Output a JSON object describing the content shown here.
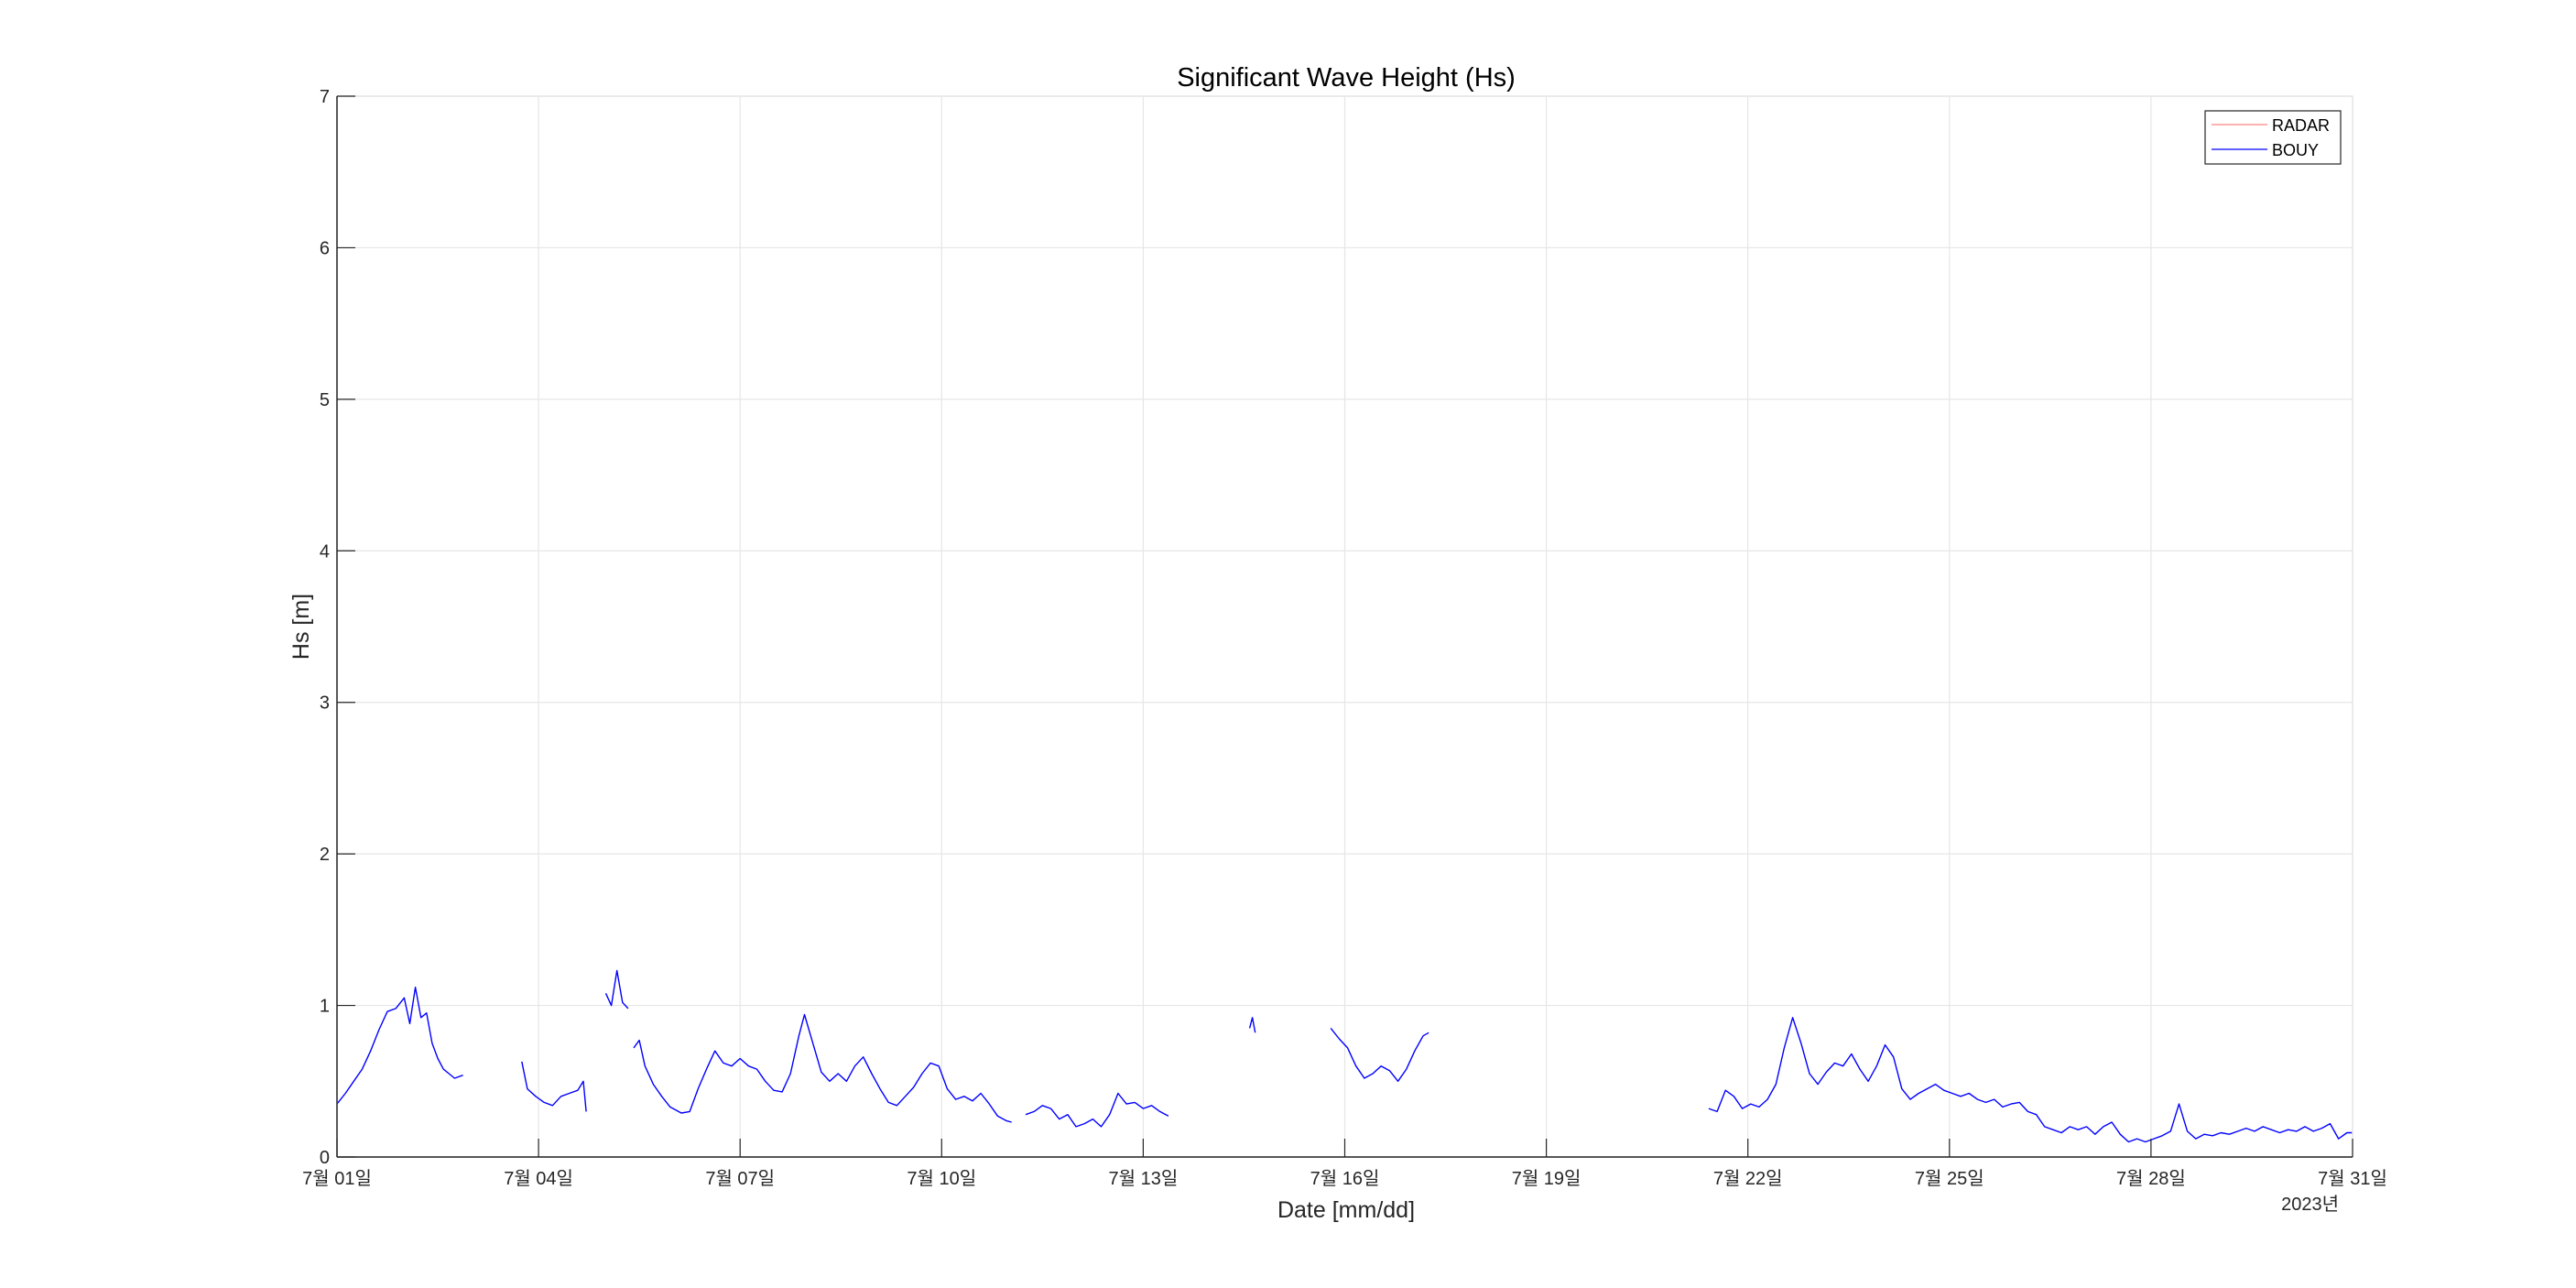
{
  "chart_data": {
    "type": "line",
    "title": "Significant Wave Height (Hs)",
    "xlabel": "Date [mm/dd]",
    "ylabel": "Hs [m]",
    "year_label": "2023년",
    "xlim": [
      "2023-07-01",
      "2023-07-31"
    ],
    "ylim": [
      0,
      7
    ],
    "yticks": [
      0,
      1,
      2,
      3,
      4,
      5,
      6,
      7
    ],
    "ytick_labels": [
      "0",
      "1",
      "2",
      "3",
      "4",
      "5",
      "6",
      "7"
    ],
    "xticks": [
      "2023-07-01",
      "2023-07-04",
      "2023-07-07",
      "2023-07-10",
      "2023-07-13",
      "2023-07-16",
      "2023-07-19",
      "2023-07-22",
      "2023-07-25",
      "2023-07-28",
      "2023-07-31"
    ],
    "xtick_labels": [
      "7월 01일",
      "7월 04일",
      "7월 07일",
      "7월 10일",
      "7월 13일",
      "7월 16일",
      "7월 19일",
      "7월 22일",
      "7월 25일",
      "7월 28일",
      "7월 31일"
    ],
    "grid": true,
    "legend_position": "top-right",
    "series": [
      {
        "name": "RADAR",
        "color": "#ff8080",
        "segments": []
      },
      {
        "name": "BOUY",
        "color": "#0000ff",
        "segments": [
          [
            [
              "2023-07-01T00:00",
              0.35
            ],
            [
              "2023-07-01T03:00",
              0.42
            ],
            [
              "2023-07-01T06:00",
              0.5
            ],
            [
              "2023-07-01T09:00",
              0.58
            ],
            [
              "2023-07-01T12:00",
              0.7
            ],
            [
              "2023-07-01T15:00",
              0.84
            ],
            [
              "2023-07-01T18:00",
              0.96
            ],
            [
              "2023-07-01T21:00",
              0.98
            ],
            [
              "2023-07-02T00:00",
              1.05
            ],
            [
              "2023-07-02T02:00",
              0.88
            ],
            [
              "2023-07-02T04:00",
              1.12
            ],
            [
              "2023-07-02T06:00",
              0.92
            ],
            [
              "2023-07-02T08:00",
              0.95
            ],
            [
              "2023-07-02T10:00",
              0.75
            ],
            [
              "2023-07-02T12:00",
              0.65
            ],
            [
              "2023-07-02T14:00",
              0.58
            ],
            [
              "2023-07-02T16:00",
              0.55
            ],
            [
              "2023-07-02T18:00",
              0.52
            ],
            [
              "2023-07-02T21:00",
              0.54
            ]
          ],
          [
            [
              "2023-07-03T18:00",
              0.63
            ],
            [
              "2023-07-03T20:00",
              0.45
            ],
            [
              "2023-07-03T23:00",
              0.4
            ],
            [
              "2023-07-04T02:00",
              0.36
            ],
            [
              "2023-07-04T05:00",
              0.34
            ],
            [
              "2023-07-04T08:00",
              0.4
            ],
            [
              "2023-07-04T11:00",
              0.42
            ],
            [
              "2023-07-04T14:00",
              0.44
            ],
            [
              "2023-07-04T16:00",
              0.5
            ],
            [
              "2023-07-04T17:00",
              0.3
            ]
          ],
          [
            [
              "2023-07-05T00:00",
              1.08
            ],
            [
              "2023-07-05T02:00",
              1.0
            ],
            [
              "2023-07-05T04:00",
              1.23
            ],
            [
              "2023-07-05T06:00",
              1.02
            ],
            [
              "2023-07-05T08:00",
              0.98
            ]
          ],
          [
            [
              "2023-07-05T10:00",
              0.72
            ],
            [
              "2023-07-05T12:00",
              0.77
            ],
            [
              "2023-07-05T14:00",
              0.6
            ],
            [
              "2023-07-05T17:00",
              0.48
            ],
            [
              "2023-07-05T20:00",
              0.4
            ],
            [
              "2023-07-05T23:00",
              0.33
            ],
            [
              "2023-07-06T03:00",
              0.29
            ],
            [
              "2023-07-06T06:00",
              0.3
            ],
            [
              "2023-07-06T09:00",
              0.45
            ],
            [
              "2023-07-06T12:00",
              0.58
            ],
            [
              "2023-07-06T15:00",
              0.7
            ],
            [
              "2023-07-06T18:00",
              0.62
            ],
            [
              "2023-07-06T21:00",
              0.6
            ],
            [
              "2023-07-07T00:00",
              0.65
            ],
            [
              "2023-07-07T03:00",
              0.6
            ],
            [
              "2023-07-07T06:00",
              0.58
            ],
            [
              "2023-07-07T09:00",
              0.5
            ],
            [
              "2023-07-07T12:00",
              0.44
            ],
            [
              "2023-07-07T15:00",
              0.43
            ],
            [
              "2023-07-07T18:00",
              0.55
            ],
            [
              "2023-07-07T21:00",
              0.8
            ],
            [
              "2023-07-07T23:00",
              0.94
            ],
            [
              "2023-07-08T02:00",
              0.75
            ],
            [
              "2023-07-08T05:00",
              0.56
            ],
            [
              "2023-07-08T08:00",
              0.5
            ],
            [
              "2023-07-08T11:00",
              0.55
            ],
            [
              "2023-07-08T14:00",
              0.5
            ],
            [
              "2023-07-08T17:00",
              0.6
            ],
            [
              "2023-07-08T20:00",
              0.66
            ],
            [
              "2023-07-08T23:00",
              0.55
            ],
            [
              "2023-07-09T02:00",
              0.45
            ],
            [
              "2023-07-09T05:00",
              0.36
            ],
            [
              "2023-07-09T08:00",
              0.34
            ],
            [
              "2023-07-09T11:00",
              0.4
            ],
            [
              "2023-07-09T14:00",
              0.46
            ],
            [
              "2023-07-09T17:00",
              0.55
            ],
            [
              "2023-07-09T20:00",
              0.62
            ],
            [
              "2023-07-09T23:00",
              0.6
            ],
            [
              "2023-07-10T02:00",
              0.45
            ],
            [
              "2023-07-10T05:00",
              0.38
            ],
            [
              "2023-07-10T08:00",
              0.4
            ],
            [
              "2023-07-10T11:00",
              0.37
            ],
            [
              "2023-07-10T14:00",
              0.42
            ],
            [
              "2023-07-10T17:00",
              0.35
            ],
            [
              "2023-07-10T20:00",
              0.27
            ],
            [
              "2023-07-10T23:00",
              0.24
            ],
            [
              "2023-07-11T01:00",
              0.23
            ]
          ],
          [
            [
              "2023-07-11T06:00",
              0.28
            ],
            [
              "2023-07-11T09:00",
              0.3
            ],
            [
              "2023-07-11T12:00",
              0.34
            ],
            [
              "2023-07-11T15:00",
              0.32
            ],
            [
              "2023-07-11T18:00",
              0.25
            ],
            [
              "2023-07-11T21:00",
              0.28
            ],
            [
              "2023-07-12T00:00",
              0.2
            ],
            [
              "2023-07-12T03:00",
              0.22
            ],
            [
              "2023-07-12T06:00",
              0.25
            ],
            [
              "2023-07-12T09:00",
              0.2
            ],
            [
              "2023-07-12T12:00",
              0.28
            ],
            [
              "2023-07-12T15:00",
              0.42
            ],
            [
              "2023-07-12T18:00",
              0.35
            ],
            [
              "2023-07-12T21:00",
              0.36
            ],
            [
              "2023-07-13T00:00",
              0.32
            ],
            [
              "2023-07-13T03:00",
              0.34
            ],
            [
              "2023-07-13T06:00",
              0.3
            ],
            [
              "2023-07-13T09:00",
              0.27
            ]
          ],
          [
            [
              "2023-07-14T14:00",
              0.85
            ],
            [
              "2023-07-14T15:00",
              0.92
            ],
            [
              "2023-07-14T16:00",
              0.82
            ]
          ],
          [
            [
              "2023-07-15T19:00",
              0.85
            ],
            [
              "2023-07-15T22:00",
              0.78
            ],
            [
              "2023-07-16T01:00",
              0.72
            ],
            [
              "2023-07-16T04:00",
              0.6
            ],
            [
              "2023-07-16T07:00",
              0.52
            ],
            [
              "2023-07-16T10:00",
              0.55
            ],
            [
              "2023-07-16T13:00",
              0.6
            ],
            [
              "2023-07-16T16:00",
              0.57
            ],
            [
              "2023-07-16T19:00",
              0.5
            ],
            [
              "2023-07-16T22:00",
              0.58
            ],
            [
              "2023-07-17T01:00",
              0.7
            ],
            [
              "2023-07-17T04:00",
              0.8
            ],
            [
              "2023-07-17T06:00",
              0.82
            ]
          ],
          [
            [
              "2023-07-21T10:00",
              0.32
            ],
            [
              "2023-07-21T13:00",
              0.3
            ],
            [
              "2023-07-21T16:00",
              0.44
            ],
            [
              "2023-07-21T19:00",
              0.4
            ],
            [
              "2023-07-21T22:00",
              0.32
            ],
            [
              "2023-07-22T01:00",
              0.35
            ],
            [
              "2023-07-22T04:00",
              0.33
            ],
            [
              "2023-07-22T07:00",
              0.38
            ],
            [
              "2023-07-22T10:00",
              0.48
            ],
            [
              "2023-07-22T13:00",
              0.72
            ],
            [
              "2023-07-22T16:00",
              0.92
            ],
            [
              "2023-07-22T19:00",
              0.75
            ],
            [
              "2023-07-22T22:00",
              0.55
            ],
            [
              "2023-07-23T01:00",
              0.48
            ],
            [
              "2023-07-23T04:00",
              0.56
            ],
            [
              "2023-07-23T07:00",
              0.62
            ],
            [
              "2023-07-23T10:00",
              0.6
            ],
            [
              "2023-07-23T13:00",
              0.68
            ],
            [
              "2023-07-23T16:00",
              0.58
            ],
            [
              "2023-07-23T19:00",
              0.5
            ],
            [
              "2023-07-23T22:00",
              0.6
            ],
            [
              "2023-07-24T01:00",
              0.74
            ],
            [
              "2023-07-24T04:00",
              0.66
            ],
            [
              "2023-07-24T07:00",
              0.45
            ],
            [
              "2023-07-24T10:00",
              0.38
            ],
            [
              "2023-07-24T13:00",
              0.42
            ],
            [
              "2023-07-24T16:00",
              0.45
            ],
            [
              "2023-07-24T19:00",
              0.48
            ],
            [
              "2023-07-24T22:00",
              0.44
            ],
            [
              "2023-07-25T01:00",
              0.42
            ],
            [
              "2023-07-25T04:00",
              0.4
            ],
            [
              "2023-07-25T07:00",
              0.42
            ],
            [
              "2023-07-25T10:00",
              0.38
            ],
            [
              "2023-07-25T13:00",
              0.36
            ],
            [
              "2023-07-25T16:00",
              0.38
            ],
            [
              "2023-07-25T19:00",
              0.33
            ],
            [
              "2023-07-25T22:00",
              0.35
            ],
            [
              "2023-07-26T01:00",
              0.36
            ],
            [
              "2023-07-26T04:00",
              0.3
            ],
            [
              "2023-07-26T07:00",
              0.28
            ],
            [
              "2023-07-26T10:00",
              0.2
            ],
            [
              "2023-07-26T13:00",
              0.18
            ],
            [
              "2023-07-26T16:00",
              0.16
            ],
            [
              "2023-07-26T19:00",
              0.2
            ],
            [
              "2023-07-26T22:00",
              0.18
            ],
            [
              "2023-07-27T01:00",
              0.2
            ],
            [
              "2023-07-27T04:00",
              0.15
            ],
            [
              "2023-07-27T07:00",
              0.2
            ],
            [
              "2023-07-27T10:00",
              0.23
            ],
            [
              "2023-07-27T13:00",
              0.15
            ],
            [
              "2023-07-27T16:00",
              0.1
            ],
            [
              "2023-07-27T19:00",
              0.12
            ],
            [
              "2023-07-27T22:00",
              0.1
            ],
            [
              "2023-07-28T01:00",
              0.12
            ],
            [
              "2023-07-28T04:00",
              0.14
            ],
            [
              "2023-07-28T07:00",
              0.17
            ],
            [
              "2023-07-28T10:00",
              0.35
            ],
            [
              "2023-07-28T13:00",
              0.17
            ],
            [
              "2023-07-28T16:00",
              0.12
            ],
            [
              "2023-07-28T19:00",
              0.15
            ],
            [
              "2023-07-28T22:00",
              0.14
            ],
            [
              "2023-07-29T01:00",
              0.16
            ],
            [
              "2023-07-29T04:00",
              0.15
            ],
            [
              "2023-07-29T07:00",
              0.17
            ],
            [
              "2023-07-29T10:00",
              0.19
            ],
            [
              "2023-07-29T13:00",
              0.17
            ],
            [
              "2023-07-29T16:00",
              0.2
            ],
            [
              "2023-07-29T19:00",
              0.18
            ],
            [
              "2023-07-29T22:00",
              0.16
            ],
            [
              "2023-07-30T01:00",
              0.18
            ],
            [
              "2023-07-30T04:00",
              0.17
            ],
            [
              "2023-07-30T07:00",
              0.2
            ],
            [
              "2023-07-30T10:00",
              0.17
            ],
            [
              "2023-07-30T13:00",
              0.19
            ],
            [
              "2023-07-30T16:00",
              0.22
            ],
            [
              "2023-07-30T19:00",
              0.12
            ],
            [
              "2023-07-30T22:00",
              0.16
            ],
            [
              "2023-07-31T00:00",
              0.16
            ]
          ]
        ]
      }
    ]
  }
}
